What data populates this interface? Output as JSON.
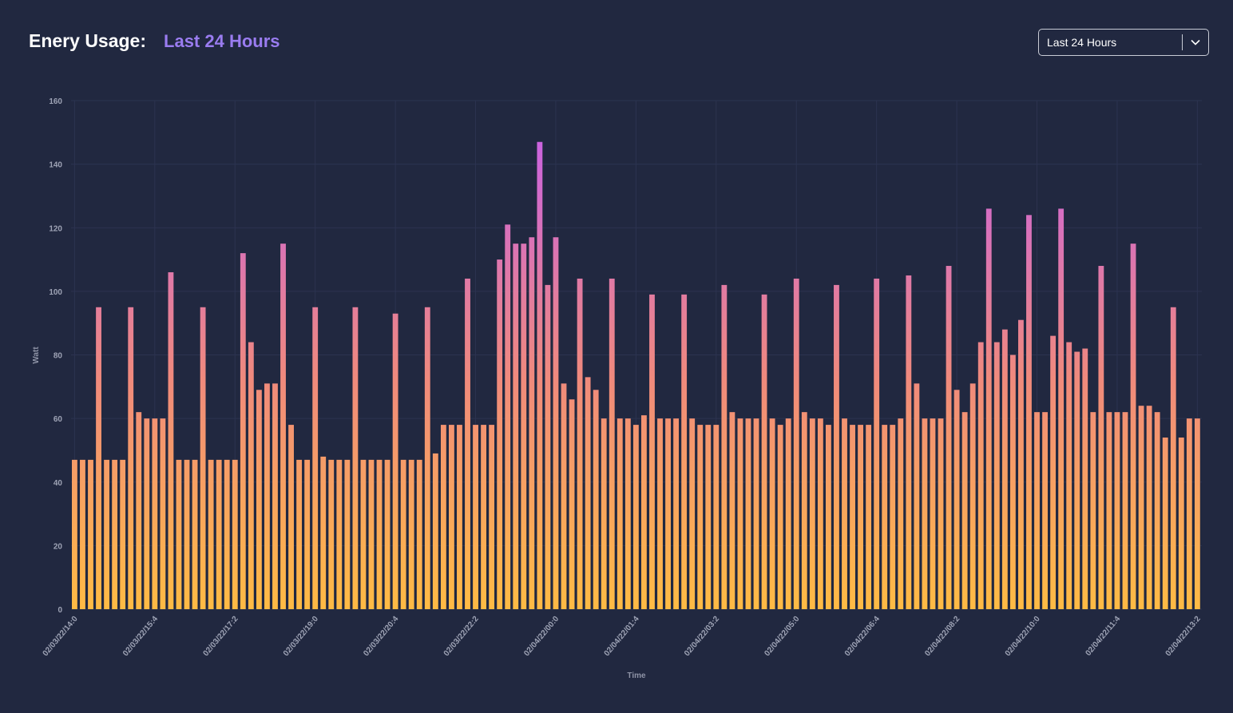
{
  "header": {
    "title": "Enery Usage:",
    "subtitle": "Last 24 Hours"
  },
  "range_select": {
    "value": "Last 24 Hours",
    "icon": "chevron-down-icon"
  },
  "colors": {
    "background": "#212840",
    "bar_bottom": "#ffbb44",
    "bar_middle": "#f08a7c",
    "bar_top": "#c45cf0",
    "accent": "#9a7cf0"
  },
  "chart_data": {
    "type": "bar",
    "xlabel": "Time",
    "ylabel": "Watt",
    "ylim": [
      0,
      160
    ],
    "yticks": [
      0,
      20,
      40,
      60,
      80,
      100,
      120,
      140,
      160
    ],
    "grid": true,
    "tick_labels": [
      "02/03/22/14:0",
      "02/03/22/15:4",
      "02/03/22/17:2",
      "02/03/22/19:0",
      "02/03/22/20:4",
      "02/03/22/22:2",
      "02/04/22/00:0",
      "02/04/22/01:4",
      "02/04/22/03:2",
      "02/04/22/05:0",
      "02/04/22/06:4",
      "02/04/22/08:2",
      "02/04/22/10:0",
      "02/04/22/11:4",
      "02/04/22/13:2"
    ],
    "values": [
      47,
      47,
      47,
      95,
      47,
      47,
      47,
      95,
      62,
      60,
      60,
      60,
      106,
      47,
      47,
      47,
      95,
      47,
      47,
      47,
      47,
      112,
      84,
      69,
      71,
      71,
      115,
      58,
      47,
      47,
      95,
      48,
      47,
      47,
      47,
      95,
      47,
      47,
      47,
      47,
      93,
      47,
      47,
      47,
      95,
      49,
      58,
      58,
      58,
      104,
      58,
      58,
      58,
      110,
      121,
      115,
      115,
      117,
      147,
      102,
      117,
      71,
      66,
      104,
      73,
      69,
      60,
      104,
      60,
      60,
      58,
      61,
      99,
      60,
      60,
      60,
      99,
      60,
      58,
      58,
      58,
      102,
      62,
      60,
      60,
      60,
      99,
      60,
      58,
      60,
      104,
      62,
      60,
      60,
      58,
      102,
      60,
      58,
      58,
      58,
      104,
      58,
      58,
      60,
      105,
      71,
      60,
      60,
      60,
      108,
      69,
      62,
      71,
      84,
      126,
      84,
      88,
      80,
      91,
      124,
      62,
      62,
      86,
      126,
      84,
      81,
      82,
      62,
      108,
      62,
      62,
      62,
      115,
      64,
      64,
      62,
      54,
      95,
      54,
      60,
      60
    ]
  }
}
